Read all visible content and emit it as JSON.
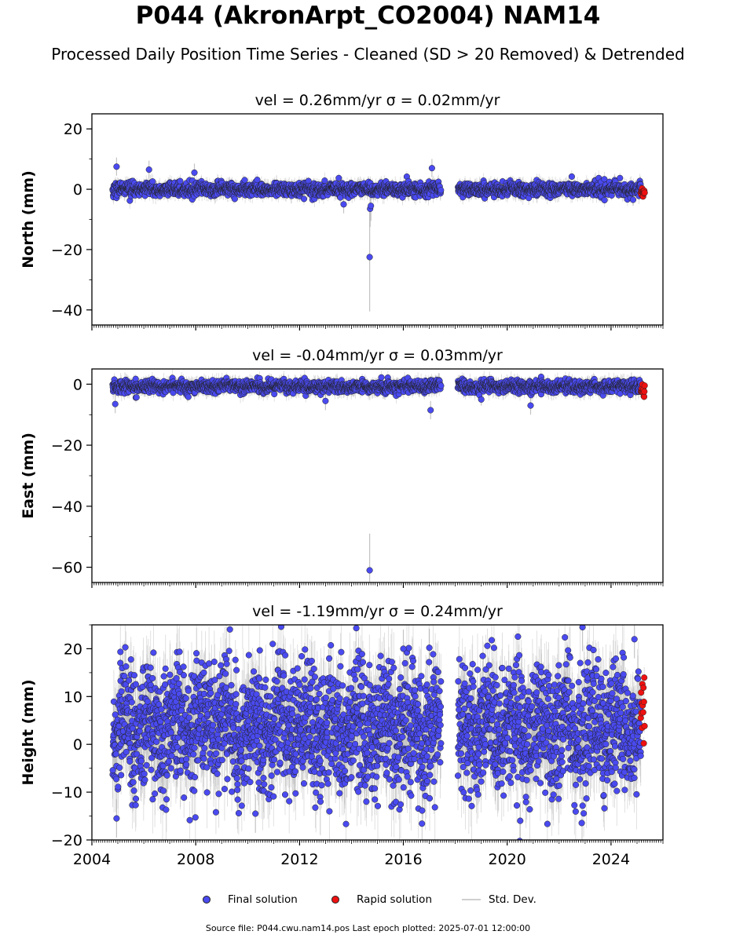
{
  "title": "P044 (AkronArpt_CO2004) NAM14",
  "subtitle": "Processed Daily Position Time Series - Cleaned (SD > 20 Removed) & Detrended",
  "footer": "Source file: P044.cwu.nam14.pos  Last epoch plotted: 2025-07-01 12:00:00",
  "legend": {
    "final": "Final solution",
    "rapid": "Rapid solution",
    "std": "Std. Dev."
  },
  "colors": {
    "final": "#4a4af0",
    "rapid": "#ee1111",
    "std": "#b4b4b4",
    "marker_edge": "#222222"
  },
  "chart_data": [
    {
      "type": "scatter",
      "title": "vel = 0.26mm/yr   σ = 0.02mm/yr",
      "ylabel": "North (mm)",
      "xlim": [
        2004,
        2026
      ],
      "ylim": [
        -45,
        25
      ],
      "yticks": [
        20,
        0,
        -20,
        -40
      ],
      "xticks": [],
      "series": [
        {
          "name": "Final solution",
          "segments": [
            [
              2004.8,
              2017.45
            ],
            [
              2018.1,
              2025.15
            ]
          ],
          "mean": 0.0,
          "scatter": 1.1,
          "sd": 2.0
        },
        {
          "name": "Rapid solution",
          "segments": [
            [
              2025.15,
              2025.3
            ]
          ],
          "mean": -1.0,
          "scatter": 0.7,
          "sd": 1.0
        }
      ],
      "outliers": [
        {
          "x": 2014.7,
          "y": -22.5,
          "sd": 18
        },
        {
          "x": 2014.72,
          "y": -6.5,
          "sd": 6
        },
        {
          "x": 2014.75,
          "y": -5.5,
          "sd": 5
        },
        {
          "x": 2013.7,
          "y": -5.0,
          "sd": 3
        },
        {
          "x": 2004.95,
          "y": 7.5,
          "sd": 3
        },
        {
          "x": 2006.2,
          "y": 6.5,
          "sd": 3
        },
        {
          "x": 2007.95,
          "y": 5.5,
          "sd": 3
        },
        {
          "x": 2017.1,
          "y": 7.0,
          "sd": 3
        },
        {
          "x": 2024.85,
          "y": -3.5,
          "sd": 2
        }
      ]
    },
    {
      "type": "scatter",
      "title": "vel = -0.04mm/yr   σ = 0.03mm/yr",
      "ylabel": "East (mm)",
      "xlim": [
        2004,
        2026
      ],
      "ylim": [
        -65,
        5
      ],
      "yticks": [
        0,
        -20,
        -40,
        -60
      ],
      "xticks": [],
      "series": [
        {
          "name": "Final solution",
          "segments": [
            [
              2004.8,
              2017.45
            ],
            [
              2018.1,
              2025.15
            ]
          ],
          "mean": -0.8,
          "scatter": 1.0,
          "sd": 2.0
        },
        {
          "name": "Rapid solution",
          "segments": [
            [
              2025.15,
              2025.3
            ]
          ],
          "mean": -2.5,
          "scatter": 1.0,
          "sd": 1.0
        }
      ],
      "outliers": [
        {
          "x": 2014.7,
          "y": -61,
          "sd": 12
        },
        {
          "x": 2004.9,
          "y": -6.5,
          "sd": 3
        },
        {
          "x": 2017.05,
          "y": -8.5,
          "sd": 3
        },
        {
          "x": 2013.0,
          "y": -5.5,
          "sd": 3
        },
        {
          "x": 2020.9,
          "y": -7.0,
          "sd": 3
        },
        {
          "x": 2019.0,
          "y": -5.0,
          "sd": 2
        }
      ]
    },
    {
      "type": "scatter",
      "title": "vel = -1.19mm/yr   σ = 0.24mm/yr",
      "ylabel": "Height (mm)",
      "xlim": [
        2004,
        2026
      ],
      "ylim": [
        -20,
        25
      ],
      "yticks": [
        20,
        10,
        0,
        -10,
        -20
      ],
      "xticks": [
        "2004",
        "2008",
        "2012",
        "2016",
        "2020",
        "2024"
      ],
      "series": [
        {
          "name": "Final solution",
          "segments": [
            [
              2004.8,
              2017.45
            ],
            [
              2018.1,
              2025.15
            ]
          ],
          "mean": 3.5,
          "scatter": 6.5,
          "sd": 6.0
        },
        {
          "name": "Rapid solution",
          "segments": [
            [
              2025.15,
              2025.3
            ]
          ],
          "mean": 8.0,
          "scatter": 3.5,
          "sd": 2.0
        }
      ],
      "outliers": [
        {
          "x": 2004.95,
          "y": -15.5,
          "sd": 4
        },
        {
          "x": 2022.9,
          "y": 24.5,
          "sd": 5
        },
        {
          "x": 2016.0,
          "y": 20.0,
          "sd": 4
        },
        {
          "x": 2017.0,
          "y": 20.2,
          "sd": 4
        },
        {
          "x": 2010.3,
          "y": -14.5,
          "sd": 4
        },
        {
          "x": 2020.5,
          "y": -16.0,
          "sd": 4
        },
        {
          "x": 2024.9,
          "y": 22.0,
          "sd": 4
        }
      ]
    }
  ]
}
